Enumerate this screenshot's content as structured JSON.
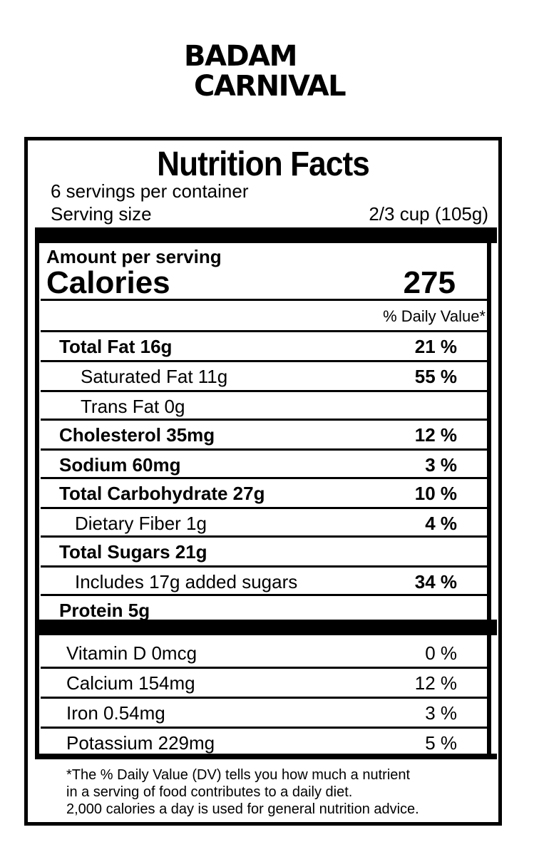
{
  "brand": {
    "line1": "BADAM",
    "line2": "CARNIVAL"
  },
  "label": {
    "title": "Nutrition Facts",
    "servings_per_container": "6 servings per container",
    "serving_size_label": "Serving size",
    "serving_size_value": "2/3 cup (105g)",
    "amount_per_serving": "Amount per serving",
    "calories_label": "Calories",
    "calories_value": "275",
    "dv_header": "% Daily Value*",
    "nutrients": [
      {
        "name": "Total Fat 16g",
        "dv": "21 %"
      },
      {
        "name": "Saturated Fat 11g",
        "dv": "55 %"
      },
      {
        "name": "Trans Fat 0g",
        "dv": ""
      },
      {
        "name": "Cholesterol 35mg",
        "dv": "12 %"
      },
      {
        "name": "Sodium 60mg",
        "dv": "3 %"
      },
      {
        "name": "Total Carbohydrate 27g",
        "dv": "10 %"
      },
      {
        "name": "Dietary Fiber 1g",
        "dv": "4 %"
      },
      {
        "name": "Total Sugars 21g",
        "dv": ""
      },
      {
        "name": "Includes 17g added sugars",
        "dv": "34 %"
      },
      {
        "name": "Protein 5g",
        "dv": ""
      }
    ],
    "vitamins": [
      {
        "name": "Vitamin D 0mcg",
        "dv": "0 %"
      },
      {
        "name": "Calcium 154mg",
        "dv": "12 %"
      },
      {
        "name": "Iron 0.54mg",
        "dv": "3 %"
      },
      {
        "name": "Potassium 229mg",
        "dv": "5 %"
      }
    ],
    "footnote": [
      "*The % Daily Value (DV) tells you how much a nutrient",
      "in a serving of food contributes to a daily diet.",
      "2,000 calories a day is used for general nutrition advice."
    ]
  }
}
